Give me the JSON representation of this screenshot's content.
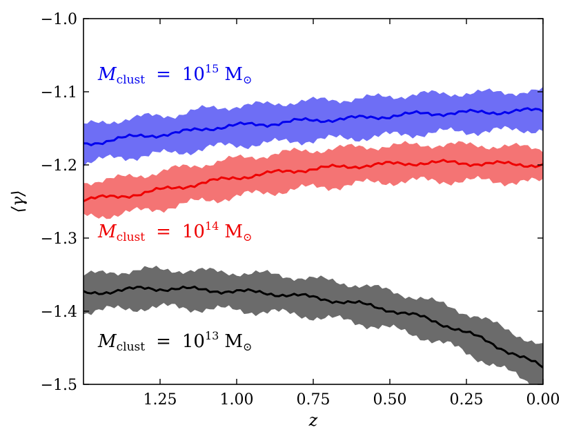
{
  "chart_data": {
    "type": "area",
    "title": "",
    "xlabel": "z",
    "ylabel": "⟨γ⟩",
    "xlim": [
      1.5,
      0.0
    ],
    "ylim": [
      -1.5,
      -1.0
    ],
    "x_inverted": true,
    "x_ticks": [
      1.25,
      1.0,
      0.75,
      0.5,
      0.25,
      0.0
    ],
    "x_tick_labels": [
      "1.25",
      "1.00",
      "0.75",
      "0.50",
      "0.25",
      "0.00"
    ],
    "y_ticks": [
      -1.0,
      -1.1,
      -1.2,
      -1.3,
      -1.4,
      -1.5
    ],
    "y_tick_labels": [
      "−1.0",
      "−1.1",
      "−1.2",
      "−1.3",
      "−1.4",
      "−1.5"
    ],
    "grid": false,
    "series": [
      {
        "name": "M_clust = 10^15 M_sun",
        "label": {
          "symbol": "M",
          "sub": "clust",
          "eq": "=",
          "base": "10",
          "exp": "15",
          "unit": "M",
          "unit_sub": "⊙"
        },
        "color": "#0000ee",
        "band_color": "#6e6ef5",
        "x": [
          1.5,
          1.4,
          1.3,
          1.2,
          1.1,
          1.0,
          0.9,
          0.8,
          0.7,
          0.6,
          0.5,
          0.4,
          0.3,
          0.2,
          0.1,
          0.0
        ],
        "y": [
          -1.172,
          -1.165,
          -1.16,
          -1.157,
          -1.15,
          -1.146,
          -1.144,
          -1.14,
          -1.138,
          -1.136,
          -1.133,
          -1.13,
          -1.129,
          -1.128,
          -1.127,
          -1.125
        ],
        "lower": [
          -1.197,
          -1.19,
          -1.186,
          -1.183,
          -1.176,
          -1.172,
          -1.17,
          -1.166,
          -1.164,
          -1.162,
          -1.159,
          -1.156,
          -1.154,
          -1.153,
          -1.152,
          -1.15
        ],
        "upper": [
          -1.147,
          -1.14,
          -1.135,
          -1.132,
          -1.124,
          -1.12,
          -1.118,
          -1.114,
          -1.112,
          -1.11,
          -1.107,
          -1.104,
          -1.103,
          -1.102,
          -1.101,
          -1.1
        ]
      },
      {
        "name": "M_clust = 10^14 M_sun",
        "label": {
          "symbol": "M",
          "sub": "clust",
          "eq": "=",
          "base": "10",
          "exp": "14",
          "unit": "M",
          "unit_sub": "⊙"
        },
        "color": "#ee0000",
        "band_color": "#f47474",
        "x": [
          1.5,
          1.4,
          1.3,
          1.2,
          1.1,
          1.0,
          0.9,
          0.8,
          0.7,
          0.6,
          0.5,
          0.4,
          0.3,
          0.2,
          0.1,
          0.0
        ],
        "y": [
          -1.247,
          -1.244,
          -1.238,
          -1.231,
          -1.224,
          -1.217,
          -1.212,
          -1.207,
          -1.204,
          -1.201,
          -1.199,
          -1.197,
          -1.197,
          -1.198,
          -1.199,
          -1.2
        ],
        "lower": [
          -1.27,
          -1.267,
          -1.262,
          -1.255,
          -1.248,
          -1.242,
          -1.237,
          -1.232,
          -1.229,
          -1.225,
          -1.222,
          -1.221,
          -1.221,
          -1.221,
          -1.222,
          -1.223
        ],
        "upper": [
          -1.224,
          -1.22,
          -1.214,
          -1.206,
          -1.199,
          -1.192,
          -1.187,
          -1.182,
          -1.179,
          -1.176,
          -1.175,
          -1.173,
          -1.173,
          -1.174,
          -1.176,
          -1.178
        ]
      },
      {
        "name": "M_clust = 10^13 M_sun",
        "label": {
          "symbol": "M",
          "sub": "clust",
          "eq": "=",
          "base": "10",
          "exp": "13",
          "unit": "M",
          "unit_sub": "⊙"
        },
        "color": "#000000",
        "band_color": "#6b6b6b",
        "x": [
          1.5,
          1.4,
          1.3,
          1.2,
          1.1,
          1.0,
          0.9,
          0.8,
          0.7,
          0.6,
          0.5,
          0.4,
          0.3,
          0.2,
          0.1,
          0.0
        ],
        "y": [
          -1.376,
          -1.372,
          -1.369,
          -1.369,
          -1.371,
          -1.373,
          -1.375,
          -1.379,
          -1.384,
          -1.39,
          -1.398,
          -1.408,
          -1.421,
          -1.438,
          -1.457,
          -1.477
        ],
        "lower": [
          -1.4,
          -1.397,
          -1.394,
          -1.394,
          -1.396,
          -1.398,
          -1.4,
          -1.404,
          -1.409,
          -1.415,
          -1.423,
          -1.433,
          -1.447,
          -1.465,
          -1.485,
          -1.505
        ],
        "upper": [
          -1.352,
          -1.347,
          -1.344,
          -1.344,
          -1.346,
          -1.348,
          -1.35,
          -1.354,
          -1.359,
          -1.365,
          -1.373,
          -1.383,
          -1.395,
          -1.411,
          -1.429,
          -1.449
        ]
      }
    ]
  }
}
